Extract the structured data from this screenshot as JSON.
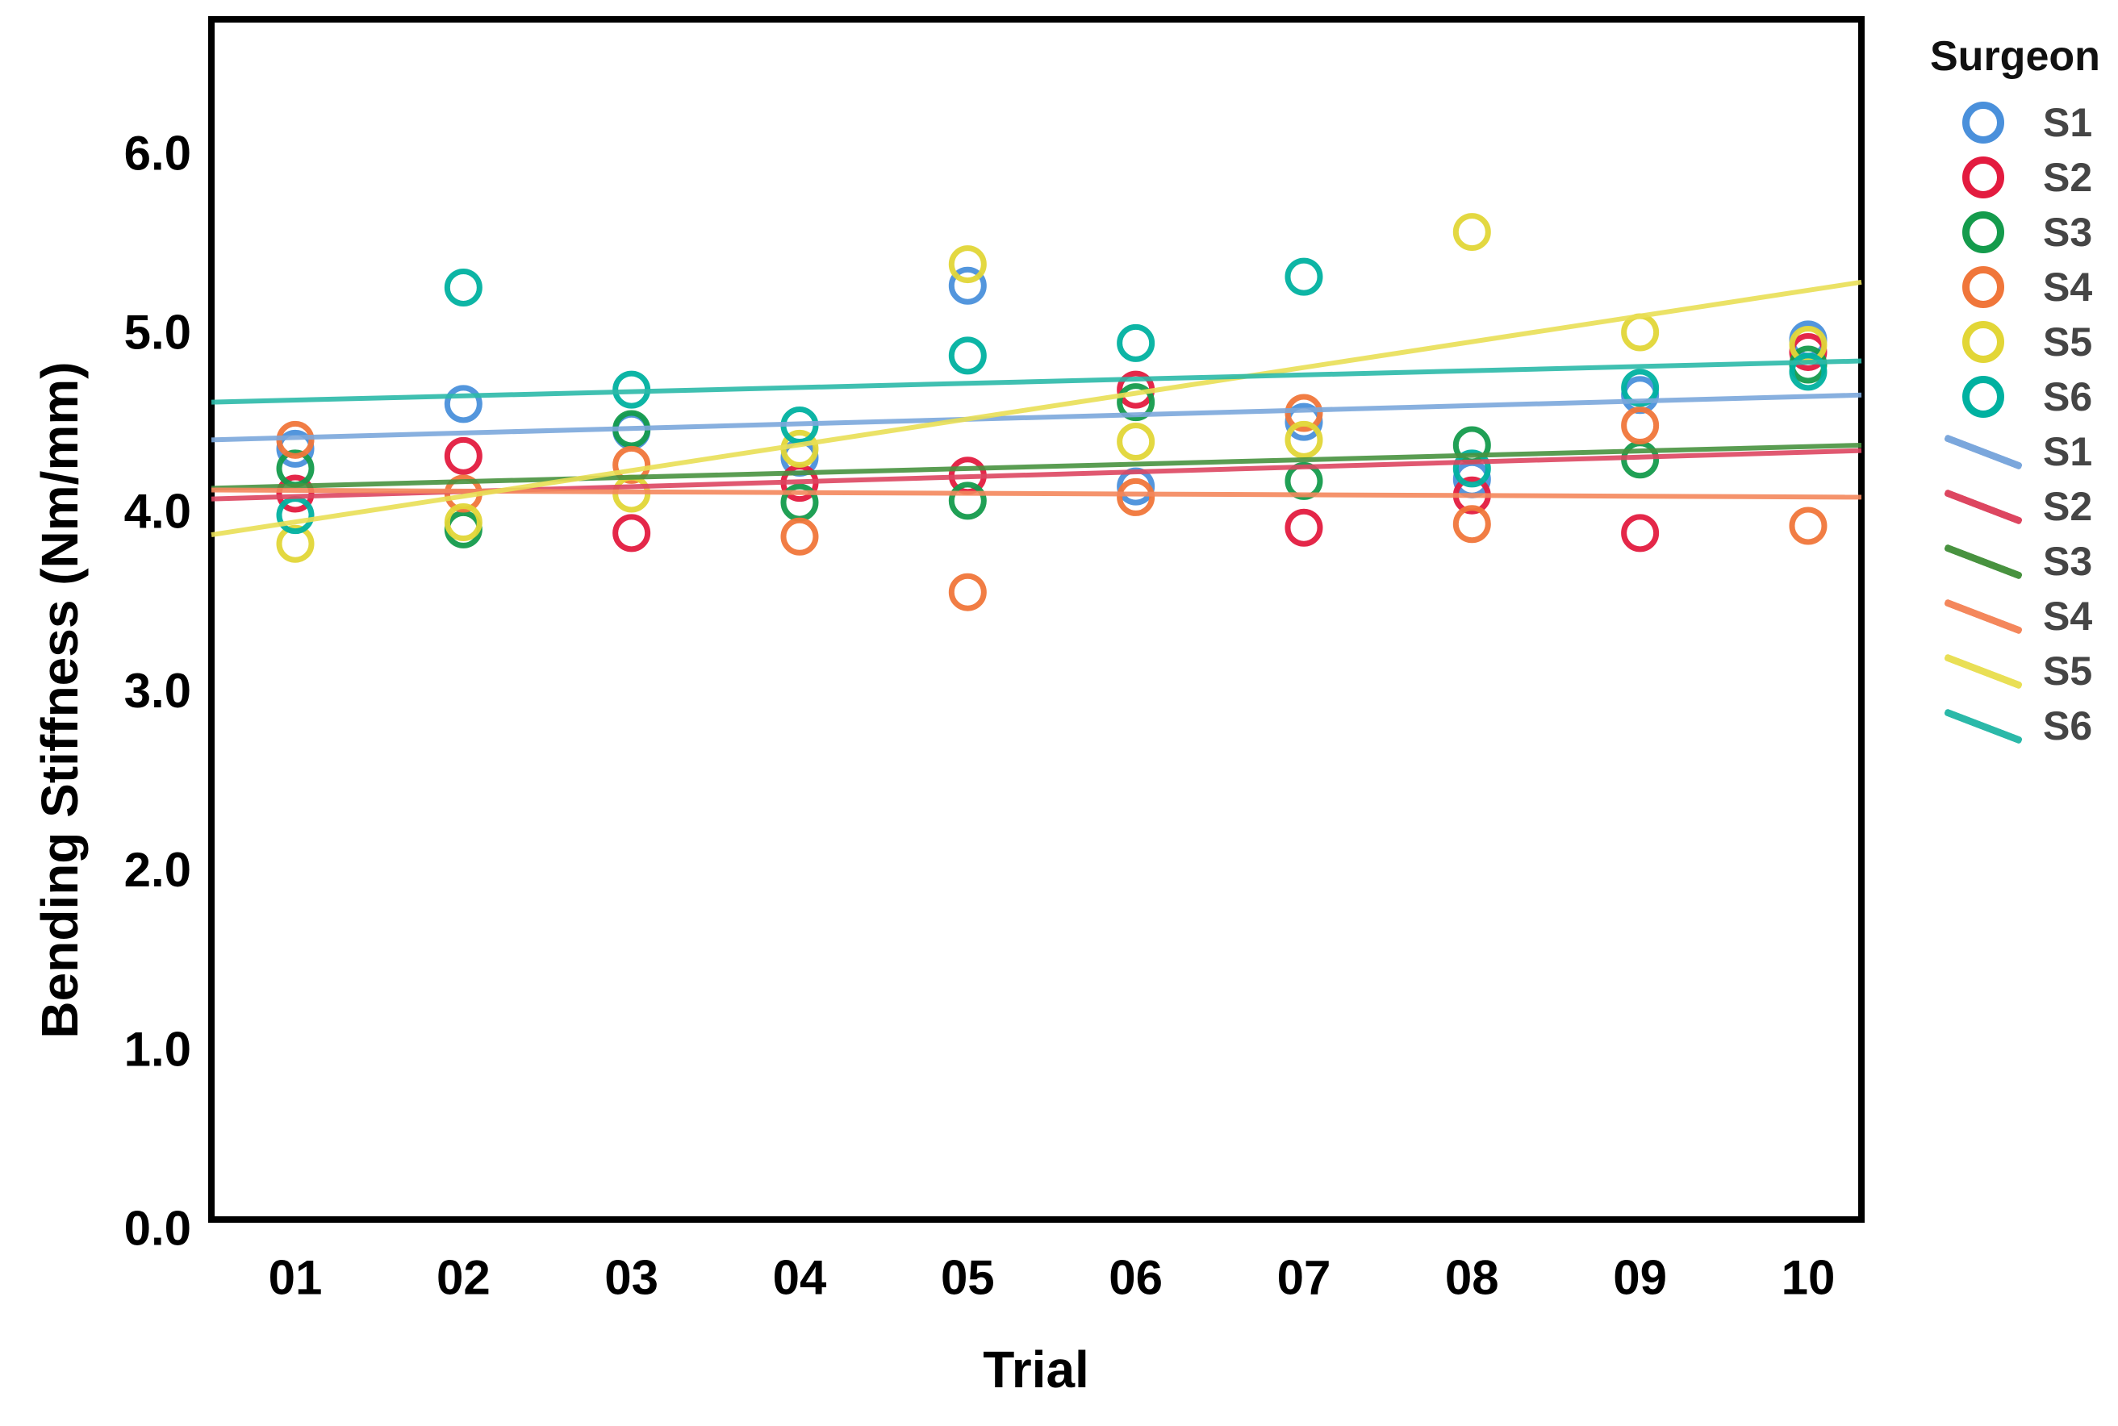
{
  "chart_data": {
    "type": "scatter",
    "title": "",
    "xlabel": "Trial",
    "ylabel": "Bending Stiffness (Nm/mm)",
    "x_categories": [
      "01",
      "02",
      "03",
      "04",
      "05",
      "06",
      "07",
      "08",
      "09",
      "10"
    ],
    "y_ticks": [
      "0.0",
      "1.0",
      "2.0",
      "3.0",
      "4.0",
      "5.0",
      "6.0"
    ],
    "ylim": [
      0,
      6.7
    ],
    "grid": false,
    "legend_position": "right",
    "series": [
      {
        "name": "S1",
        "marker_color": "#4A90DB",
        "line_color": "#7BA7DC",
        "values": [
          4.35,
          4.6,
          4.45,
          4.3,
          5.26,
          4.14,
          4.5,
          4.18,
          4.65,
          4.96
        ],
        "trend": {
          "start": 4.4,
          "end": 4.65
        }
      },
      {
        "name": "S2",
        "marker_color": "#E31B3F",
        "line_color": "#DD4660",
        "values": [
          4.1,
          4.31,
          3.88,
          4.16,
          4.2,
          4.68,
          3.91,
          4.09,
          3.88,
          4.89
        ],
        "trend": {
          "start": 4.07,
          "end": 4.34
        }
      },
      {
        "name": "S3",
        "marker_color": "#149B4C",
        "line_color": "#48923F",
        "values": [
          4.24,
          3.9,
          4.46,
          4.05,
          4.06,
          4.61,
          4.17,
          4.37,
          4.29,
          4.82
        ],
        "trend": {
          "start": 4.13,
          "end": 4.37
        }
      },
      {
        "name": "S4",
        "marker_color": "#F0763A",
        "line_color": "#F4875C",
        "values": [
          4.4,
          4.1,
          4.26,
          3.86,
          3.55,
          4.08,
          4.55,
          3.93,
          4.48,
          3.92
        ],
        "trend": {
          "start": 4.12,
          "end": 4.08
        }
      },
      {
        "name": "S5",
        "marker_color": "#E2D637",
        "line_color": "#E9DF55",
        "values": [
          3.82,
          3.94,
          4.1,
          4.35,
          5.38,
          4.39,
          4.4,
          5.56,
          5.0,
          4.93
        ],
        "trend": {
          "start": 3.87,
          "end": 5.28
        }
      },
      {
        "name": "S6",
        "marker_color": "#00B1A0",
        "line_color": "#2BB9A9",
        "values": [
          3.98,
          5.25,
          4.68,
          4.48,
          4.87,
          4.94,
          5.31,
          4.24,
          4.69,
          4.78
        ],
        "trend": {
          "start": 4.61,
          "end": 4.84
        }
      }
    ]
  },
  "legend": {
    "title": "Surgeon"
  }
}
